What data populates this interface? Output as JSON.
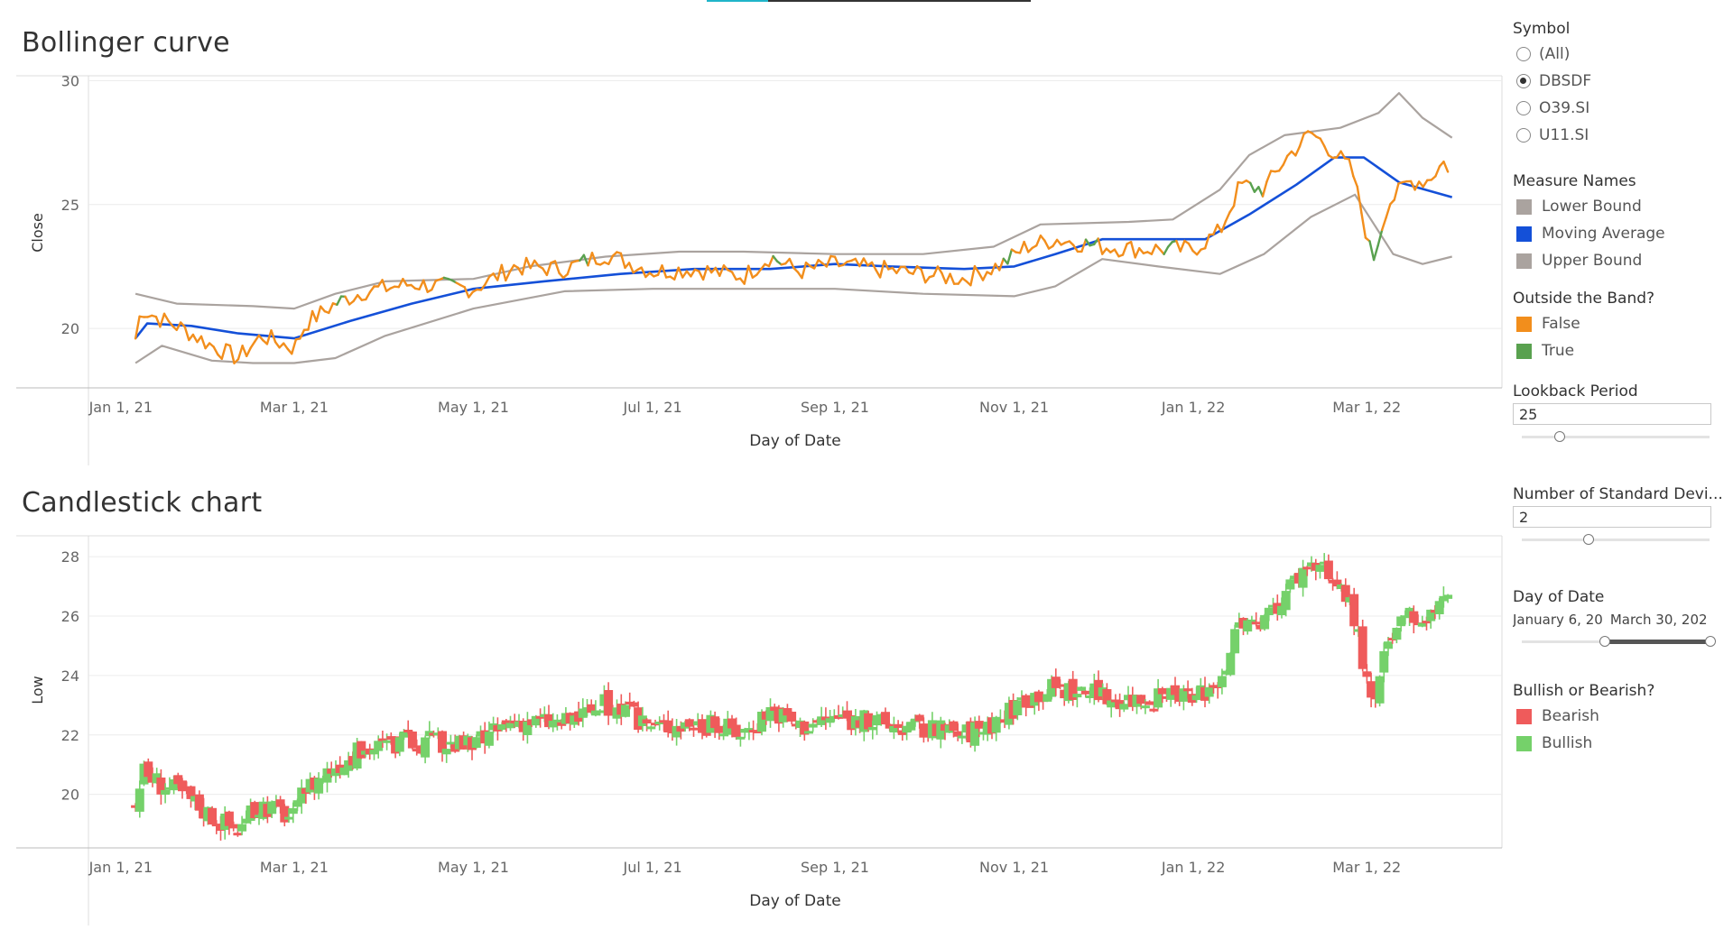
{
  "bollinger": {
    "title": "Bollinger curve",
    "ylabel": "Close",
    "xlabel": "Day of Date",
    "yticks": [
      "30",
      "25",
      "20"
    ],
    "xticks": [
      "Jan 1, 21",
      "Mar 1, 21",
      "May 1, 21",
      "Jul 1, 21",
      "Sep 1, 21",
      "Nov 1, 21",
      "Jan 1, 22",
      "Mar 1, 22"
    ]
  },
  "candlestick": {
    "title": "Candlestick chart",
    "ylabel": "Low",
    "xlabel": "Day of Date",
    "yticks": [
      "28",
      "26",
      "24",
      "22",
      "20"
    ],
    "xticks": [
      "Jan 1, 21",
      "Mar 1, 21",
      "May 1, 21",
      "Jul 1, 21",
      "Sep 1, 21",
      "Nov 1, 21",
      "Jan 1, 22",
      "Mar 1, 22"
    ]
  },
  "sidebar": {
    "symbol": {
      "title": "Symbol",
      "options": [
        {
          "label": "(All)",
          "selected": false
        },
        {
          "label": "DBSDF",
          "selected": true
        },
        {
          "label": "O39.SI",
          "selected": false
        },
        {
          "label": "U11.SI",
          "selected": false
        }
      ]
    },
    "measure_names": {
      "title": "Measure Names",
      "items": [
        {
          "label": "Lower Bound",
          "color": "#aaa39f"
        },
        {
          "label": "Moving Average",
          "color": "#1450d8"
        },
        {
          "label": "Upper Bound",
          "color": "#aaa39f"
        }
      ]
    },
    "outside_band": {
      "title": "Outside the Band?",
      "items": [
        {
          "label": "False",
          "color": "#f28e1c"
        },
        {
          "label": "True",
          "color": "#59a14f"
        }
      ]
    },
    "lookback": {
      "title": "Lookback Period",
      "value": "25"
    },
    "std_devs": {
      "title": "Number of Standard Devi...",
      "value": "2"
    },
    "date_range": {
      "title": "Day of Date",
      "start": "January 6, 20",
      "end": "March 30, 202"
    },
    "bull_bear": {
      "title": "Bullish or Bearish?",
      "items": [
        {
          "label": "Bearish",
          "color": "#ef5b5b"
        },
        {
          "label": "Bullish",
          "color": "#75d16a"
        }
      ]
    }
  },
  "chart_data": [
    {
      "type": "line",
      "title": "Bollinger curve",
      "xlabel": "Day of Date",
      "ylabel": "Close",
      "ylim": [
        17.6,
        30.2
      ],
      "xlim": [
        "2020-12-21",
        "2022-04-16"
      ],
      "x_ticks": [
        "2021-01-01",
        "2021-03-01",
        "2021-05-01",
        "2021-07-01",
        "2021-09-01",
        "2021-11-01",
        "2022-01-01",
        "2022-03-01"
      ],
      "close_keyframes": [
        [
          "2021-01-06",
          19.6
        ],
        [
          "2021-01-08",
          20.8
        ],
        [
          "2021-01-14",
          20.4
        ],
        [
          "2021-01-22",
          20.0
        ],
        [
          "2021-02-01",
          19.3
        ],
        [
          "2021-02-10",
          18.8
        ],
        [
          "2021-02-18",
          19.7
        ],
        [
          "2021-03-01",
          19.2
        ],
        [
          "2021-03-05",
          20.2
        ],
        [
          "2021-03-15",
          21.0
        ],
        [
          "2021-03-25",
          21.5
        ],
        [
          "2021-04-10",
          21.8
        ],
        [
          "2021-05-01",
          21.6
        ],
        [
          "2021-05-15",
          22.5
        ],
        [
          "2021-06-01",
          22.4
        ],
        [
          "2021-06-15",
          23.0
        ],
        [
          "2021-07-01",
          22.3
        ],
        [
          "2021-07-15",
          22.4
        ],
        [
          "2021-08-01",
          22.1
        ],
        [
          "2021-08-10",
          22.9
        ],
        [
          "2021-08-20",
          22.3
        ],
        [
          "2021-09-01",
          22.6
        ],
        [
          "2021-09-15",
          22.4
        ],
        [
          "2021-10-01",
          22.2
        ],
        [
          "2021-10-15",
          22.0
        ],
        [
          "2021-10-28",
          22.6
        ],
        [
          "2021-11-05",
          23.3
        ],
        [
          "2021-11-15",
          23.6
        ],
        [
          "2021-12-01",
          23.3
        ],
        [
          "2021-12-15",
          23.2
        ],
        [
          "2022-01-01",
          23.2
        ],
        [
          "2022-01-10",
          23.9
        ],
        [
          "2022-01-17",
          25.8
        ],
        [
          "2022-01-25",
          25.6
        ],
        [
          "2022-02-01",
          26.8
        ],
        [
          "2022-02-10",
          27.9
        ],
        [
          "2022-02-17",
          27.2
        ],
        [
          "2022-02-24",
          26.4
        ],
        [
          "2022-03-03",
          22.7
        ],
        [
          "2022-03-08",
          25.0
        ],
        [
          "2022-03-15",
          25.9
        ],
        [
          "2022-03-22",
          26.0
        ],
        [
          "2022-03-27",
          26.7
        ],
        [
          "2022-03-30",
          26.4
        ]
      ],
      "series": [
        {
          "name": "Upper Bound",
          "values": [
            [
              "2021-01-06",
              21.4
            ],
            [
              "2021-01-20",
              21.0
            ],
            [
              "2021-02-15",
              20.9
            ],
            [
              "2021-03-01",
              20.8
            ],
            [
              "2021-03-15",
              21.4
            ],
            [
              "2021-04-01",
              21.9
            ],
            [
              "2021-05-01",
              22.0
            ],
            [
              "2021-05-20",
              22.5
            ],
            [
              "2021-06-15",
              22.9
            ],
            [
              "2021-07-10",
              23.1
            ],
            [
              "2021-08-01",
              23.1
            ],
            [
              "2021-09-01",
              23.0
            ],
            [
              "2021-10-01",
              23.0
            ],
            [
              "2021-10-25",
              23.3
            ],
            [
              "2021-11-10",
              24.2
            ],
            [
              "2021-12-10",
              24.3
            ],
            [
              "2021-12-25",
              24.4
            ],
            [
              "2022-01-10",
              25.6
            ],
            [
              "2022-01-20",
              27.0
            ],
            [
              "2022-02-01",
              27.8
            ],
            [
              "2022-02-20",
              28.1
            ],
            [
              "2022-03-05",
              28.7
            ],
            [
              "2022-03-12",
              29.5
            ],
            [
              "2022-03-20",
              28.5
            ],
            [
              "2022-03-30",
              27.7
            ]
          ]
        },
        {
          "name": "Moving Average",
          "values": [
            [
              "2021-01-06",
              19.6
            ],
            [
              "2021-01-10",
              20.2
            ],
            [
              "2021-01-25",
              20.1
            ],
            [
              "2021-02-10",
              19.8
            ],
            [
              "2021-03-01",
              19.6
            ],
            [
              "2021-03-20",
              20.3
            ],
            [
              "2021-04-10",
              21.0
            ],
            [
              "2021-05-01",
              21.6
            ],
            [
              "2021-05-25",
              21.9
            ],
            [
              "2021-06-20",
              22.2
            ],
            [
              "2021-07-15",
              22.4
            ],
            [
              "2021-08-10",
              22.4
            ],
            [
              "2021-09-01",
              22.6
            ],
            [
              "2021-09-20",
              22.5
            ],
            [
              "2021-10-15",
              22.4
            ],
            [
              "2021-11-01",
              22.5
            ],
            [
              "2021-11-15",
              23.0
            ],
            [
              "2021-12-01",
              23.6
            ],
            [
              "2021-12-20",
              23.6
            ],
            [
              "2022-01-05",
              23.6
            ],
            [
              "2022-01-20",
              24.6
            ],
            [
              "2022-02-05",
              25.8
            ],
            [
              "2022-02-18",
              26.9
            ],
            [
              "2022-02-28",
              26.9
            ],
            [
              "2022-03-12",
              25.9
            ],
            [
              "2022-03-30",
              25.3
            ]
          ]
        },
        {
          "name": "Lower Bound",
          "values": [
            [
              "2021-01-06",
              18.6
            ],
            [
              "2021-01-15",
              19.3
            ],
            [
              "2021-02-01",
              18.7
            ],
            [
              "2021-02-15",
              18.6
            ],
            [
              "2021-03-01",
              18.6
            ],
            [
              "2021-03-15",
              18.8
            ],
            [
              "2021-04-01",
              19.7
            ],
            [
              "2021-05-01",
              20.8
            ],
            [
              "2021-06-01",
              21.5
            ],
            [
              "2021-07-01",
              21.6
            ],
            [
              "2021-08-01",
              21.6
            ],
            [
              "2021-09-01",
              21.6
            ],
            [
              "2021-10-01",
              21.4
            ],
            [
              "2021-11-01",
              21.3
            ],
            [
              "2021-11-15",
              21.7
            ],
            [
              "2021-12-01",
              22.8
            ],
            [
              "2021-12-20",
              22.5
            ],
            [
              "2022-01-10",
              22.2
            ],
            [
              "2022-01-25",
              23.0
            ],
            [
              "2022-02-10",
              24.5
            ],
            [
              "2022-02-25",
              25.4
            ],
            [
              "2022-03-10",
              23.0
            ],
            [
              "2022-03-20",
              22.6
            ],
            [
              "2022-03-30",
              22.9
            ]
          ]
        }
      ],
      "outside_band_segments": [
        [
          "2021-03-15",
          "2021-03-18"
        ],
        [
          "2021-04-20",
          "2021-04-25"
        ],
        [
          "2021-06-05",
          "2021-06-08"
        ],
        [
          "2021-08-10",
          "2021-08-13"
        ],
        [
          "2021-10-28",
          "2021-10-31"
        ],
        [
          "2021-11-25",
          "2021-11-29"
        ],
        [
          "2021-12-22",
          "2021-12-26"
        ],
        [
          "2022-01-20",
          "2022-01-24"
        ],
        [
          "2022-03-01",
          "2022-03-06"
        ]
      ]
    },
    {
      "type": "candlestick",
      "title": "Candlestick chart",
      "xlabel": "Day of Date",
      "ylabel": "Low",
      "ylim": [
        18.2,
        28.7
      ],
      "xlim": [
        "2020-12-21",
        "2022-04-16"
      ],
      "x_ticks": [
        "2021-01-01",
        "2021-03-01",
        "2021-05-01",
        "2021-07-01",
        "2021-09-01",
        "2021-11-01",
        "2022-01-01",
        "2022-03-01"
      ],
      "y_ticks": [
        28,
        26,
        24,
        22,
        20
      ]
    }
  ]
}
